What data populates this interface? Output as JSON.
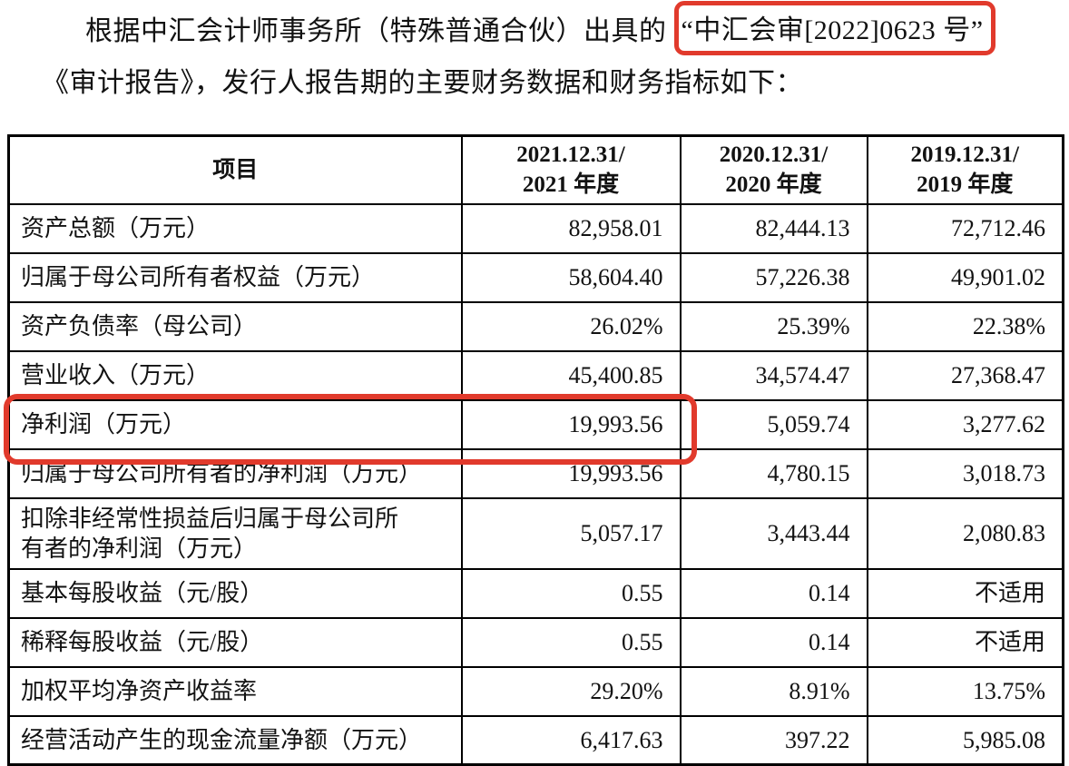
{
  "colors": {
    "annotation_red": "#e13a2c",
    "table_border": "#000000",
    "text": "#121212"
  },
  "intro": {
    "line1_prefix": "根据中汇会计师事务所（特殊普通合伙）出具的",
    "report_number": "“中汇会审[2022]0623 号”",
    "line2": "《审计报告》，发行人报告期的主要财务数据和财务指标如下："
  },
  "table": {
    "header": {
      "item_label": "项目",
      "periods": [
        {
          "line1": "2021.12.31/",
          "line2": "2021 年度"
        },
        {
          "line1": "2020.12.31/",
          "line2": "2020 年度"
        },
        {
          "line1": "2019.12.31/",
          "line2": "2019 年度"
        }
      ]
    },
    "rows": [
      {
        "label": "资产总额（万元）",
        "values": [
          "82,958.01",
          "82,444.13",
          "72,712.46"
        ]
      },
      {
        "label": "归属于母公司所有者权益（万元）",
        "values": [
          "58,604.40",
          "57,226.38",
          "49,901.02"
        ]
      },
      {
        "label": "资产负债率（母公司）",
        "values": [
          "26.02%",
          "25.39%",
          "22.38%"
        ]
      },
      {
        "label": "营业收入（万元）",
        "values": [
          "45,400.85",
          "34,574.47",
          "27,368.47"
        ]
      },
      {
        "label": "净利润（万元）",
        "values": [
          "19,993.56",
          "5,059.74",
          "3,277.62"
        ],
        "highlighted": true
      },
      {
        "label": "归属于母公司所有者的净利润（万元）",
        "values": [
          "19,993.56",
          "4,780.15",
          "3,018.73"
        ]
      },
      {
        "label": "扣除非经常性损益后归属于母公司所有者的净利润（万元）",
        "values": [
          "5,057.17",
          "3,443.44",
          "2,080.83"
        ]
      },
      {
        "label": "基本每股收益（元/股）",
        "values": [
          "0.55",
          "0.14",
          "不适用"
        ]
      },
      {
        "label": "稀释每股收益（元/股）",
        "values": [
          "0.55",
          "0.14",
          "不适用"
        ]
      },
      {
        "label": "加权平均净资产收益率",
        "values": [
          "29.20%",
          "8.91%",
          "13.75%"
        ]
      },
      {
        "label": "经营活动产生的现金流量净额（万元）",
        "values": [
          "6,417.63",
          "397.22",
          "5,985.08"
        ]
      }
    ],
    "highlighted_row_index": 4,
    "highlight_span_columns": 2
  }
}
